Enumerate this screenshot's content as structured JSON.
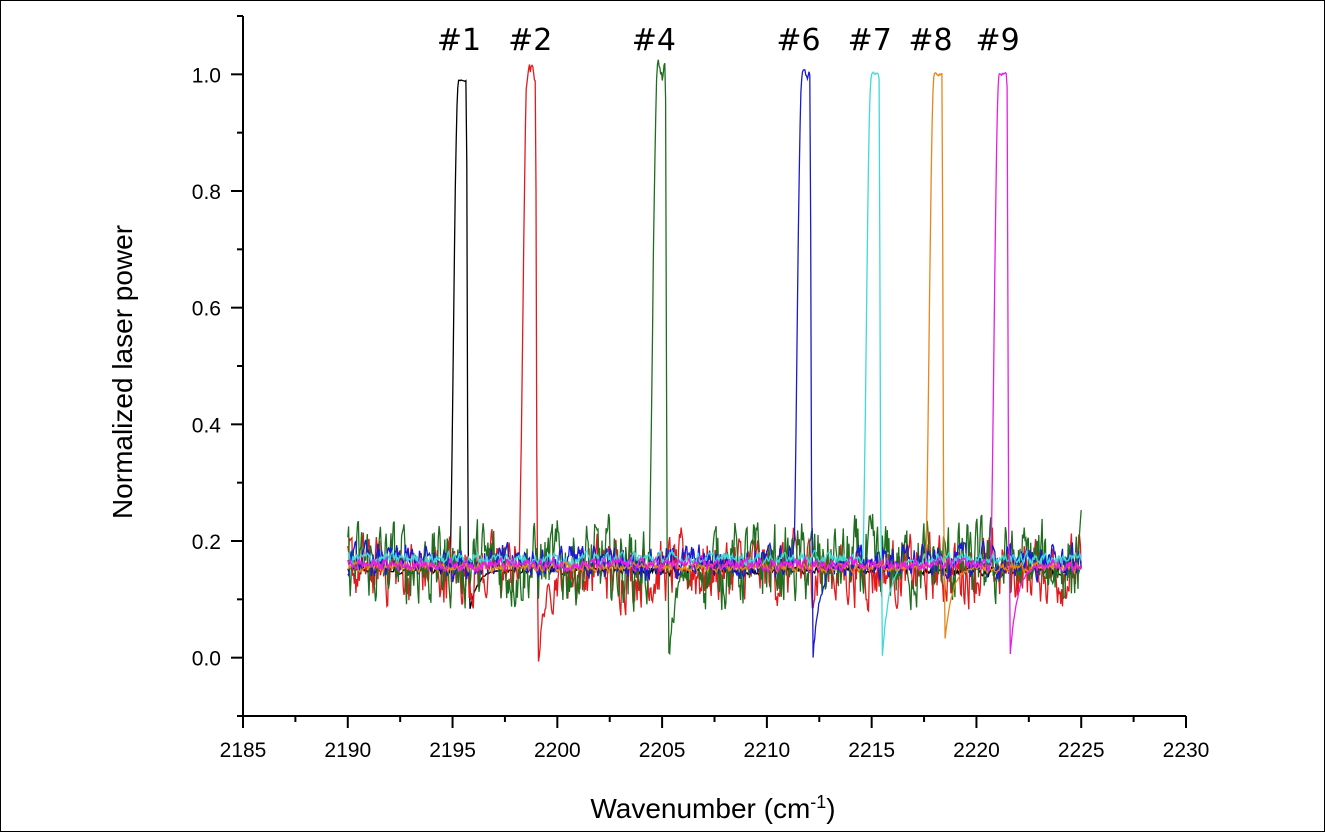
{
  "chart_data": {
    "type": "line",
    "title": "",
    "xlabel": "Wavenumber (cm",
    "xlabel_sup": "-1",
    "xlabel_tail": ")",
    "ylabel": "Normalized laser power",
    "xlim": [
      2185,
      2230
    ],
    "ylim": [
      -0.1,
      1.1
    ],
    "x_ticks": [
      2185,
      2190,
      2195,
      2200,
      2205,
      2210,
      2215,
      2220,
      2225,
      2230
    ],
    "y_ticks": [
      0.0,
      0.2,
      0.4,
      0.6,
      0.8,
      1.0
    ],
    "x_tick_labels": [
      "2185",
      "2190",
      "2195",
      "2200",
      "2205",
      "2210",
      "2215",
      "2220",
      "2225",
      "2230"
    ],
    "y_tick_labels": [
      "0.0",
      "0.2",
      "0.4",
      "0.6",
      "0.8",
      "1.0"
    ],
    "grid": false,
    "x_range_data": [
      2190,
      2225
    ],
    "annotations": [
      {
        "text": "#1",
        "x": 2195.5
      },
      {
        "text": "#2",
        "x": 2198.9
      },
      {
        "text": "#4",
        "x": 2204.8
      },
      {
        "text": "#6",
        "x": 2211.7
      },
      {
        "text": "#7",
        "x": 2215.1
      },
      {
        "text": "#8",
        "x": 2218.0
      },
      {
        "text": "#9",
        "x": 2221.2
      }
    ],
    "series": [
      {
        "label": "#1",
        "color": "#000000",
        "peak_x": 2195.3,
        "peak_y": 0.99,
        "dip_y": 0.075,
        "baseline": 0.15,
        "noise": 0.006
      },
      {
        "label": "#2",
        "color": "#e31a1c",
        "peak_x": 2198.6,
        "peak_y": 1.0,
        "dip_y": 0.0,
        "baseline": 0.15,
        "noise": 0.045
      },
      {
        "label": "#4",
        "color": "#1f6e1f",
        "peak_x": 2204.8,
        "peak_y": 1.0,
        "dip_y": -0.01,
        "baseline": 0.16,
        "noise": 0.055
      },
      {
        "label": "#6",
        "color": "#1a1ad0",
        "peak_x": 2211.7,
        "peak_y": 1.0,
        "dip_y": 0.0,
        "baseline": 0.165,
        "noise": 0.022
      },
      {
        "label": "#7",
        "color": "#3fd9d9",
        "peak_x": 2215.0,
        "peak_y": 1.0,
        "dip_y": 0.0,
        "baseline": 0.17,
        "noise": 0.008
      },
      {
        "label": "#8",
        "color": "#e8861a",
        "peak_x": 2218.0,
        "peak_y": 1.0,
        "dip_y": 0.03,
        "baseline": 0.155,
        "noise": 0.006
      },
      {
        "label": "#9",
        "color": "#e61ee6",
        "peak_x": 2221.1,
        "peak_y": 1.0,
        "dip_y": 0.0,
        "baseline": 0.16,
        "noise": 0.008
      }
    ]
  }
}
